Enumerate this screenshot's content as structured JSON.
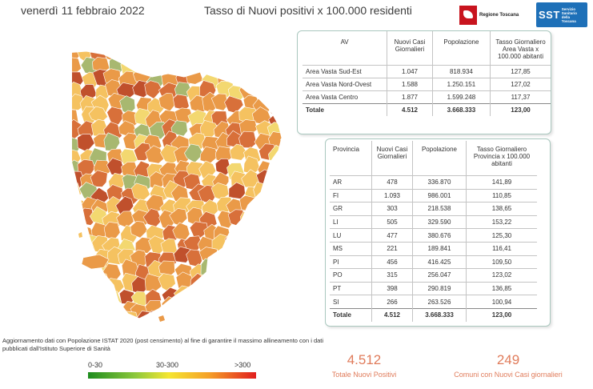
{
  "header": {
    "date": "venerdì 11 febbraio 2022",
    "title": "Tasso di Nuovi positivi x 100.000 residenti",
    "logo_toscana_text": "Regione Toscana",
    "logo_sst_big": "SST",
    "logo_sst_small": [
      "Servizio",
      "Sanitario",
      "della",
      "Toscana"
    ]
  },
  "area_table": {
    "headers": [
      "AV",
      "Nuovi Casi Giornalieri",
      "Popolazione",
      "Tasso Giornaliero Area Vasta x 100.000 abitanti"
    ],
    "rows": [
      [
        "Area Vasta Sud-Est",
        "1.047",
        "818.934",
        "127,85"
      ],
      [
        "Area Vasta Nord-Ovest",
        "1.588",
        "1.250.151",
        "127,02"
      ],
      [
        "Area Vasta Centro",
        "1.877",
        "1.599.248",
        "117,37"
      ]
    ],
    "total": [
      "Totale",
      "4.512",
      "3.668.333",
      "123,00"
    ]
  },
  "province_table": {
    "headers": [
      "Provincia",
      "Nuovi Casi Giornalieri",
      "Popolazione",
      "Tasso Giornaliero Provincia x 100.000 abitanti"
    ],
    "rows": [
      [
        "AR",
        "478",
        "336.870",
        "141,89"
      ],
      [
        "FI",
        "1.093",
        "986.001",
        "110,85"
      ],
      [
        "GR",
        "303",
        "218.538",
        "138,65"
      ],
      [
        "LI",
        "505",
        "329.590",
        "153,22"
      ],
      [
        "LU",
        "477",
        "380.676",
        "125,30"
      ],
      [
        "MS",
        "221",
        "189.841",
        "116,41"
      ],
      [
        "PI",
        "456",
        "416.425",
        "109,50"
      ],
      [
        "PO",
        "315",
        "256.047",
        "123,02"
      ],
      [
        "PT",
        "398",
        "290.819",
        "136,85"
      ],
      [
        "SI",
        "266",
        "263.526",
        "100,94"
      ]
    ],
    "total": [
      "Totale",
      "4.512",
      "3.668.333",
      "123,00"
    ]
  },
  "note": "Aggiornamento dati con Popolazione ISTAT 2020 (post censimento) al fine di garantire il massimo allineamento con i dati pubblicati dall'Istituto Superiore di Sanità",
  "legend": {
    "low": "0-30",
    "mid": "30-300",
    "high": ">300",
    "colors": [
      "#1e8c1e",
      "#8cc83c",
      "#f5e632",
      "#f5a028",
      "#e11e1e"
    ]
  },
  "kpis": {
    "total_positive_value": "4.512",
    "total_positive_label": "Totale Nuovi Positivi",
    "municipalities_value": "249",
    "municipalities_label": "Comuni con Nuovi Casi giornalieri"
  },
  "map_colors": {
    "light": "#f5c260",
    "mid": "#ea9a48",
    "dark": "#d8703a",
    "darkest": "#c0502c",
    "yellow": "#f3d870",
    "green": "#a8b870",
    "border": "#ffffff"
  }
}
